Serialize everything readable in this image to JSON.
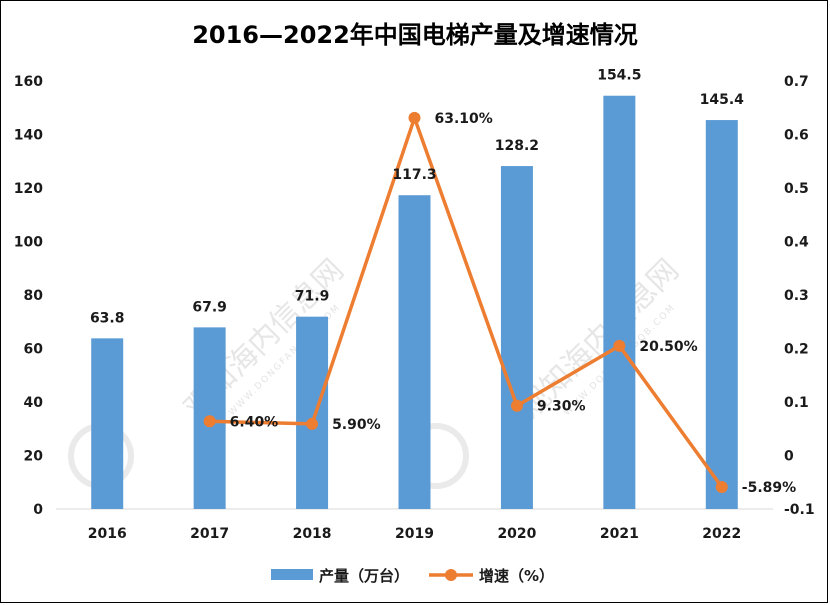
{
  "watermark": {
    "text": "观知海内信息网",
    "sub": "WWW.DONGFANGQB.COM"
  },
  "chart_data": {
    "type": "bar+line",
    "title": "2016—2022年中国电梯产量及增速情况",
    "categories": [
      "2016",
      "2017",
      "2018",
      "2019",
      "2020",
      "2021",
      "2022"
    ],
    "series": [
      {
        "name": "产量（万台）",
        "type": "bar",
        "axis": "left",
        "color": "#5B9BD5",
        "values": [
          63.8,
          67.9,
          71.9,
          117.3,
          128.2,
          154.5,
          145.4
        ],
        "labels": [
          "63.8",
          "67.9",
          "71.9",
          "117.3",
          "128.2",
          "154.5",
          "145.4"
        ]
      },
      {
        "name": "增速（%）",
        "type": "line",
        "axis": "right",
        "color": "#ED7D31",
        "values": [
          null,
          0.064,
          0.059,
          0.631,
          0.093,
          0.205,
          -0.0589
        ],
        "labels": [
          null,
          "6.40%",
          "5.90%",
          "63.10%",
          "9.30%",
          "20.50%",
          "-5.89%"
        ]
      }
    ],
    "y_left": {
      "lim": [
        0,
        160
      ],
      "ticks": [
        "0",
        "20",
        "40",
        "60",
        "80",
        "100",
        "120",
        "140",
        "160"
      ]
    },
    "y_right": {
      "lim": [
        -0.1,
        0.7
      ],
      "ticks": [
        "-0.1",
        "0",
        "0.1",
        "0.2",
        "0.3",
        "0.4",
        "0.5",
        "0.6",
        "0.7"
      ]
    },
    "grid": false,
    "legend": "bottom"
  }
}
